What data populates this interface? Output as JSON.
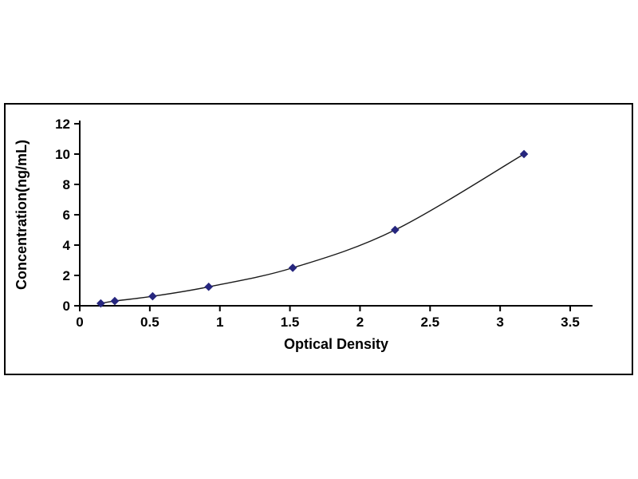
{
  "page": {
    "background": "#ffffff"
  },
  "chart_data": {
    "type": "line",
    "subtype": "scatter-with-smooth-line",
    "title": "",
    "xlabel": "Optical Density",
    "ylabel": "Concentration(ng/mL)",
    "x": [
      0.15,
      0.25,
      0.52,
      0.92,
      1.52,
      2.25,
      3.17
    ],
    "y": [
      0.156,
      0.312,
      0.625,
      1.25,
      2.5,
      5,
      10
    ],
    "x_ticks": [
      0,
      0.5,
      1,
      1.5,
      2,
      2.5,
      3,
      3.5
    ],
    "y_ticks": [
      0,
      2,
      4,
      6,
      8,
      10,
      12
    ],
    "xlim": [
      0,
      3.65
    ],
    "ylim": [
      0,
      12
    ],
    "grid": false,
    "legend": "none",
    "marker": "diamond",
    "marker_color": "#26267E",
    "line_color": "#1a1a1a",
    "axis_color": "#000000",
    "text_color": "#000000"
  }
}
